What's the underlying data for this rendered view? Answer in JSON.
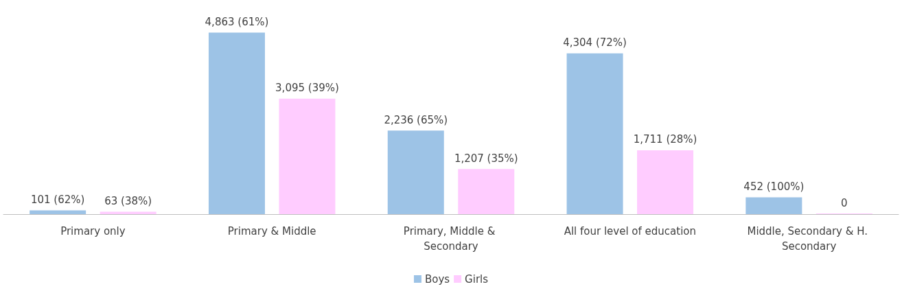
{
  "chart_data": {
    "type": "bar",
    "categories": [
      "Primary only",
      "Primary & Middle",
      "Primary, Middle & Secondary",
      "All four level of education",
      "Middle, Secondary & H. Secondary"
    ],
    "series": [
      {
        "name": "Boys",
        "color": "#9dc3e6",
        "values": [
          101,
          4863,
          2236,
          4304,
          452
        ],
        "value_labels": [
          "101 (62%)",
          "4,863 (61%)",
          "2,236 (65%)",
          "4,304 (72%)",
          "452 (100%)"
        ]
      },
      {
        "name": "Girls",
        "color": "#ffccff",
        "values": [
          63,
          3095,
          1207,
          1711,
          0
        ],
        "value_labels": [
          "63 (38%)",
          "3,095 (39%)",
          "1,207 (35%)",
          "1,711 (28%)",
          "0"
        ]
      }
    ],
    "grid": false,
    "legend": "bottom"
  }
}
